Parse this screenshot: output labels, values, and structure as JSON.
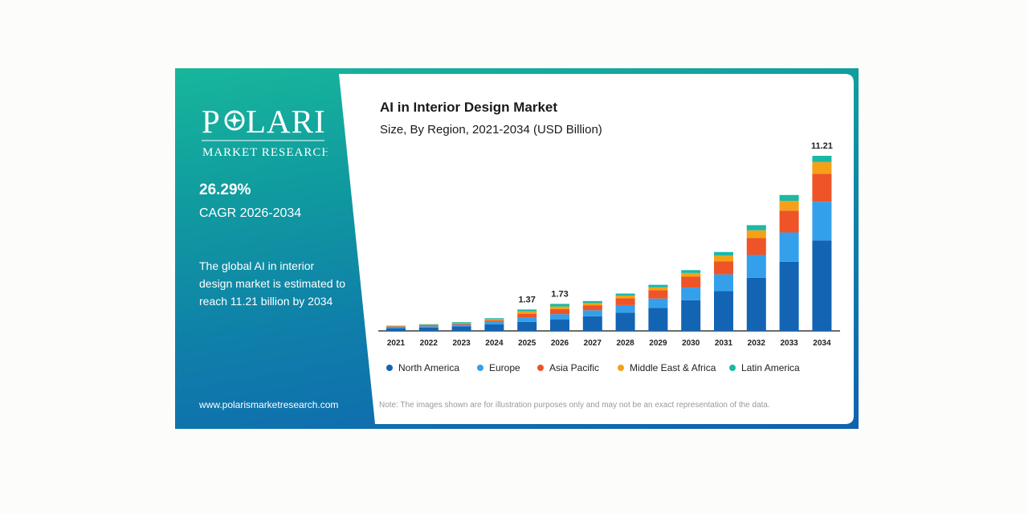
{
  "brand": {
    "logo_name": "POLARIS",
    "logo_sub": "MARKET RESEARCH",
    "cagr_value": "26.29%",
    "cagr_label": "CAGR 2026-2034",
    "description": "The global AI in interior design market is estimated to reach 11.21 billion by 2034",
    "website": "www.polarismarketresearch.com"
  },
  "note": "Note: The images shown are for illustration purposes only and may not be an exact representation of the data.",
  "colors": {
    "teal": "#17b79b",
    "blue": "#0f62b0",
    "series": [
      "#1464b4",
      "#34a0ec",
      "#ee5428",
      "#f5a117",
      "#1ab8a6"
    ]
  },
  "chart_data": {
    "type": "bar",
    "stacked": true,
    "title": "AI in Interior Design Market",
    "subtitle": "Size, By Region, 2021-2034 (USD Billion)",
    "categories": [
      "2021",
      "2022",
      "2023",
      "2024",
      "2025",
      "2026",
      "2027",
      "2028",
      "2029",
      "2030",
      "2031",
      "2032",
      "2033",
      "2034"
    ],
    "series": [
      {
        "name": "North America",
        "values": [
          0.17,
          0.22,
          0.29,
          0.41,
          0.57,
          0.74,
          0.93,
          1.17,
          1.47,
          1.96,
          2.55,
          3.4,
          4.43,
          5.79
        ]
      },
      {
        "name": "Europe",
        "values": [
          0.06,
          0.08,
          0.11,
          0.17,
          0.27,
          0.33,
          0.39,
          0.48,
          0.6,
          0.81,
          1.07,
          1.46,
          1.87,
          2.48
        ]
      },
      {
        "name": "Asia Pacific",
        "values": [
          0.05,
          0.06,
          0.07,
          0.1,
          0.26,
          0.32,
          0.32,
          0.43,
          0.53,
          0.7,
          0.84,
          1.08,
          1.4,
          1.79
        ]
      },
      {
        "name": "Middle East & Africa",
        "values": [
          0.02,
          0.03,
          0.04,
          0.06,
          0.15,
          0.17,
          0.14,
          0.18,
          0.19,
          0.24,
          0.36,
          0.5,
          0.63,
          0.75
        ]
      },
      {
        "name": "Latin America",
        "values": [
          0.03,
          0.04,
          0.05,
          0.07,
          0.12,
          0.17,
          0.13,
          0.13,
          0.16,
          0.18,
          0.23,
          0.33,
          0.37,
          0.4
        ]
      }
    ],
    "data_labels": [
      {
        "category": "2025",
        "text": "1.37"
      },
      {
        "category": "2026",
        "text": "1.73"
      },
      {
        "category": "2034",
        "text": "11.21"
      }
    ],
    "ylim": [
      0,
      11.21
    ],
    "legend": "bottom",
    "grid": false
  }
}
